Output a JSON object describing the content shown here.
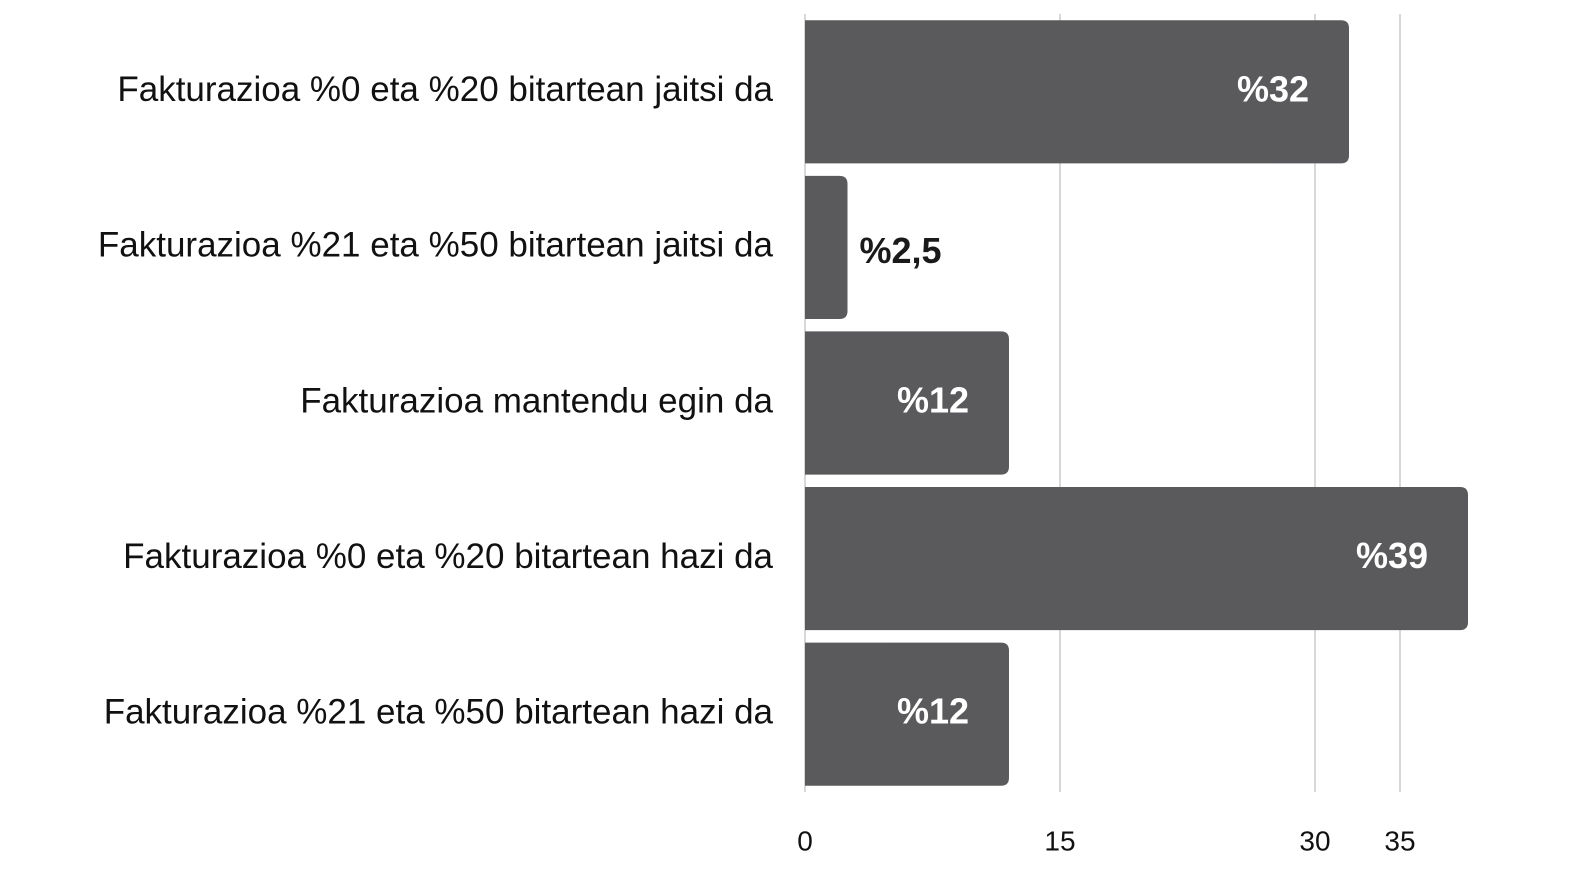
{
  "chart_data": {
    "type": "bar",
    "orientation": "horizontal",
    "categories": [
      "Fakturazioa %0 eta %20 bitartean jaitsi da",
      "Fakturazioa %21 eta %50 bitartean jaitsi da",
      "Fakturazioa mantendu egin da",
      "Fakturazioa %0 eta %20 bitartean hazi da",
      "Fakturazioa %21 eta %50 bitartean hazi da"
    ],
    "values": [
      32,
      2.5,
      12,
      39,
      12
    ],
    "value_labels": [
      "%32",
      "%2,5",
      "%12",
      "%39",
      "%12"
    ],
    "color": "#5a5a5c",
    "xlim": [
      0,
      40
    ],
    "xticks": [
      0,
      15,
      30,
      35
    ],
    "grid": true
  }
}
